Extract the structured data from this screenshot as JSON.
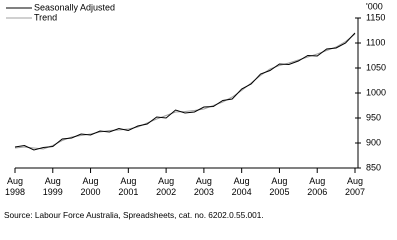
{
  "chart_data": {
    "type": "line",
    "y_unit": "'000",
    "source": "Source: Labour Force Australia, Spreadsheets, cat. no. 6202.0.55.001.",
    "categories": [
      "Aug 1998",
      null,
      null,
      null,
      "Aug 1999",
      null,
      null,
      null,
      "Aug 2000",
      null,
      null,
      null,
      "Aug 2001",
      null,
      null,
      null,
      "Aug 2002",
      null,
      null,
      null,
      "Aug 2003",
      null,
      null,
      null,
      "Aug 2004",
      null,
      null,
      null,
      "Aug 2005",
      null,
      null,
      null,
      "Aug 2006",
      null,
      null,
      null,
      "Aug 2007"
    ],
    "series": [
      {
        "name": "Seasonally Adjusted",
        "color": "#000000",
        "values": [
          892,
          895,
          886,
          891,
          893,
          908,
          910,
          918,
          916,
          924,
          922,
          929,
          925,
          934,
          938,
          952,
          950,
          966,
          960,
          962,
          972,
          973,
          985,
          988,
          1008,
          1018,
          1038,
          1045,
          1058,
          1057,
          1064,
          1075,
          1074,
          1088,
          1090,
          1100,
          1120
        ]
      },
      {
        "name": "Trend",
        "color": "#a0a0a0",
        "values": [
          890,
          892,
          890,
          888,
          895,
          905,
          912,
          915,
          918,
          922,
          925,
          926,
          928,
          932,
          940,
          948,
          955,
          962,
          963,
          965,
          968,
          975,
          982,
          992,
          1005,
          1020,
          1035,
          1048,
          1055,
          1060,
          1066,
          1072,
          1078,
          1085,
          1092,
          1103,
          1118
        ]
      }
    ],
    "ylim": [
      850,
      1150
    ],
    "yticks": [
      850,
      900,
      950,
      1000,
      1050,
      1100,
      1150
    ]
  }
}
